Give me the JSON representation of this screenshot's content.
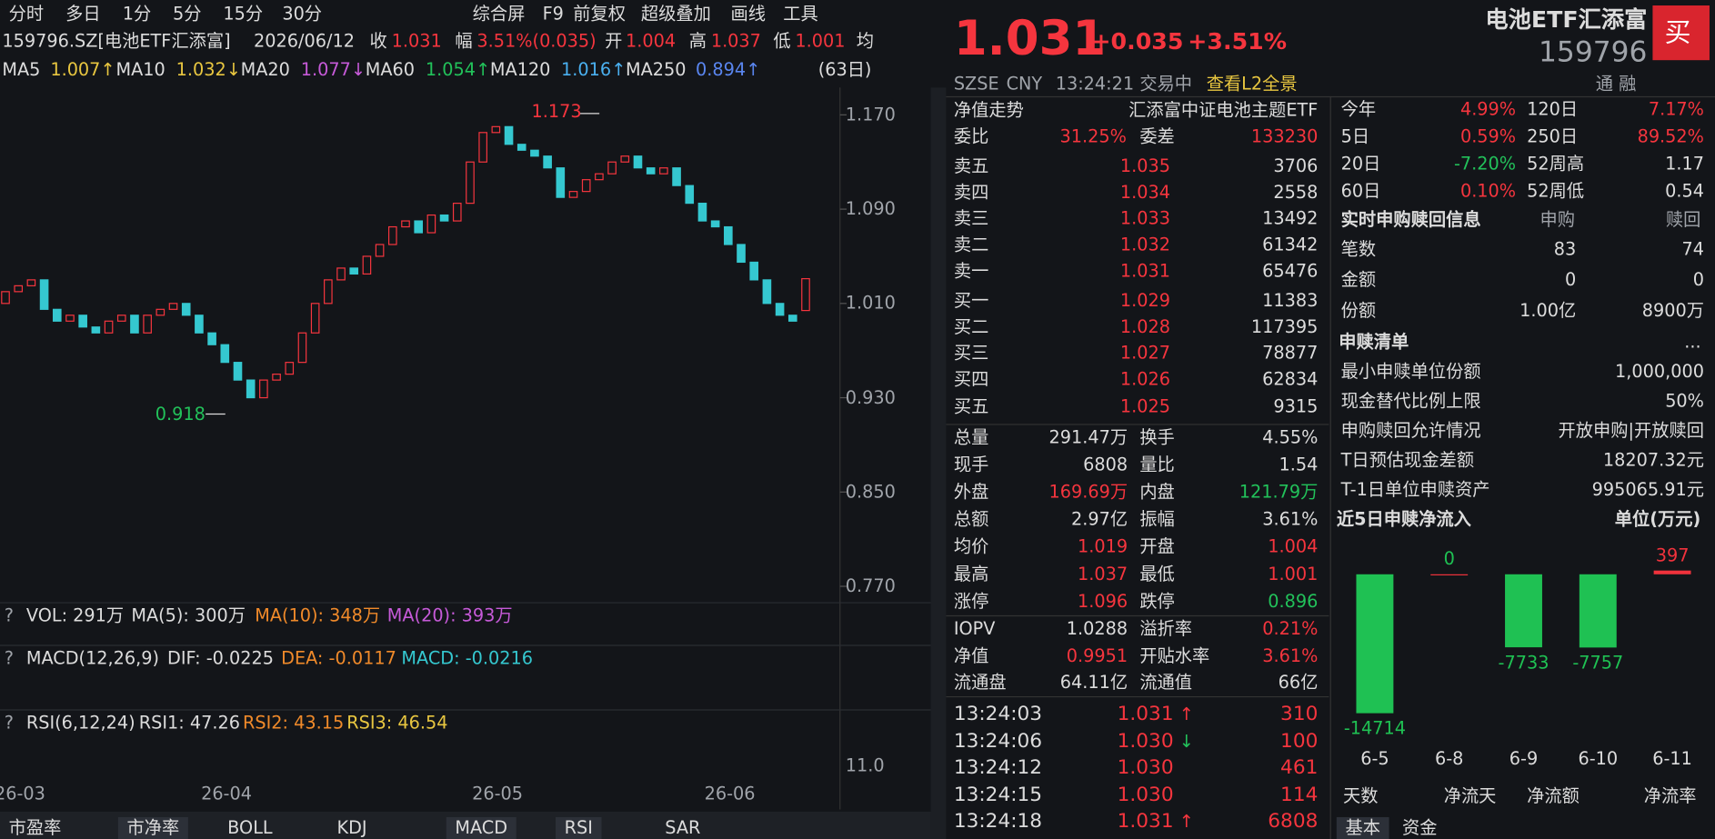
{
  "toolbar": {
    "periods": [
      "分时",
      "多日",
      "1分",
      "5分",
      "15分",
      "30分"
    ],
    "tools": [
      "综合屏",
      "F9",
      "前复权",
      "超级叠加",
      "画线",
      "工具"
    ]
  },
  "info": {
    "code": "159796.SZ[电池ETF汇添富]",
    "date": "2026/06/12",
    "close_label": "收",
    "close": "1.031",
    "change_label": "幅",
    "change": "3.51%(0.035)",
    "open_label": "开",
    "open": "1.004",
    "high_label": "高",
    "high": "1.037",
    "low_label": "低",
    "low": "1.001",
    "avg_label": "均"
  },
  "ma": [
    {
      "name": "MA5",
      "value": "1.007↑"
    },
    {
      "name": "MA10",
      "value": "1.032↓"
    },
    {
      "name": "MA20",
      "value": "1.077↓"
    },
    {
      "name": "MA60",
      "value": "1.054↑"
    },
    {
      "name": "MA120",
      "value": "1.016↑"
    },
    {
      "name": "MA250",
      "value": "0.894↑"
    }
  ],
  "period": "(63日)",
  "chart": {
    "type": "candlestick",
    "ylim": [
      0.77,
      1.17
    ],
    "yticks": [
      {
        "value": 1.17,
        "label": "1.170"
      },
      {
        "value": 1.09,
        "label": "1.090"
      },
      {
        "value": 1.01,
        "label": "1.010"
      },
      {
        "value": 0.93,
        "label": "0.930"
      },
      {
        "value": 0.85,
        "label": "0.850"
      },
      {
        "value": 0.77,
        "label": "0.770"
      }
    ],
    "categories": [
      "26-03",
      null,
      null,
      null,
      null,
      null,
      null,
      null,
      null,
      null,
      null,
      null,
      null,
      null,
      null,
      null,
      "26-04",
      null,
      null,
      null,
      null,
      null,
      null,
      null,
      null,
      null,
      null,
      null,
      null,
      null,
      null,
      null,
      null,
      null,
      null,
      null,
      null,
      "26-05",
      null,
      null,
      null,
      null,
      null,
      null,
      null,
      null,
      null,
      null,
      null,
      null,
      null,
      null,
      null,
      null,
      null,
      "26-06",
      null,
      null,
      null,
      null,
      null,
      null,
      null
    ],
    "open": [
      1.01,
      1.02,
      1.025,
      1.03,
      1.005,
      0.995,
      1.0,
      0.99,
      0.985,
      0.995,
      1.0,
      0.985,
      1.0,
      1.005,
      1.01,
      1.0,
      0.985,
      0.975,
      0.96,
      0.945,
      0.93,
      0.945,
      0.95,
      0.96,
      0.985,
      1.01,
      1.03,
      1.04,
      1.035,
      1.05,
      1.06,
      1.075,
      1.08,
      1.07,
      1.085,
      1.08,
      1.095,
      1.13,
      1.155,
      1.16,
      1.145,
      1.14,
      1.135,
      1.125,
      1.1,
      1.105,
      1.115,
      1.12,
      1.13,
      1.135,
      1.125,
      1.12,
      1.125,
      1.11,
      1.095,
      1.08,
      1.075,
      1.06,
      1.045,
      1.03,
      1.01,
      1.0,
      1.004
    ],
    "close": [
      1.02,
      1.025,
      1.03,
      1.005,
      0.995,
      1.0,
      0.99,
      0.985,
      0.995,
      1.0,
      0.985,
      1.0,
      1.005,
      1.01,
      1.0,
      0.985,
      0.975,
      0.96,
      0.945,
      0.93,
      0.945,
      0.95,
      0.96,
      0.985,
      1.01,
      1.03,
      1.04,
      1.035,
      1.05,
      1.06,
      1.075,
      1.08,
      1.07,
      1.085,
      1.08,
      1.095,
      1.13,
      1.155,
      1.16,
      1.145,
      1.14,
      1.135,
      1.125,
      1.1,
      1.105,
      1.115,
      1.12,
      1.13,
      1.135,
      1.125,
      1.12,
      1.125,
      1.11,
      1.095,
      1.08,
      1.075,
      1.06,
      1.045,
      1.03,
      1.01,
      1.0,
      0.995,
      1.031
    ],
    "high_mark": 1.173,
    "low_mark": 0.918
  },
  "vol": {
    "help": "?",
    "items": [
      "VOL: 291万",
      "MA(5): 300万",
      "MA(10): 348万",
      "MA(20): 393万"
    ]
  },
  "macd": {
    "items": [
      "MACD(12,26,9)",
      "DIF: -0.0225",
      "DEA: -0.0117",
      "MACD: -0.0216"
    ]
  },
  "rsi": {
    "items": [
      "RSI(6,12,24)",
      "RSI1: 47.26",
      "RSI2: 43.15",
      "RSI3: 46.54"
    ],
    "tick": "11.0"
  },
  "tabs": [
    "市盈率",
    "市净率",
    "BOLL",
    "KDJ",
    "MACD",
    "RSI",
    "SAR"
  ],
  "quote": {
    "price": "1.031",
    "change": "+0.035",
    "pct": "+3.51%",
    "name": "电池ETF汇添富",
    "code": "159796",
    "buy": "买",
    "status": [
      "SZSE",
      "CNY",
      "13:24:21",
      "交易中",
      "查看L2全景"
    ],
    "finance": "通 融",
    "nav_trend": "净值走势",
    "fund": "汇添富中证电池主题ETF",
    "ratio": [
      "委比",
      "31.25%",
      "委差",
      "133230"
    ],
    "sells": [
      [
        "卖五",
        "1.035",
        "3706"
      ],
      [
        "卖四",
        "1.034",
        "2558"
      ],
      [
        "卖三",
        "1.033",
        "13492"
      ],
      [
        "卖二",
        "1.032",
        "61342"
      ],
      [
        "卖一",
        "1.031",
        "65476"
      ]
    ],
    "buys": [
      [
        "买一",
        "1.029",
        "11383"
      ],
      [
        "买二",
        "1.028",
        "117395"
      ],
      [
        "买三",
        "1.027",
        "78877"
      ],
      [
        "买四",
        "1.026",
        "62834"
      ],
      [
        "买五",
        "1.025",
        "9315"
      ]
    ],
    "stats": [
      [
        "总量",
        "291.47万",
        "换手",
        "4.55%"
      ],
      [
        "现手",
        "6808",
        "量比",
        "1.54"
      ],
      [
        "外盘",
        "169.69万",
        "内盘",
        "121.79万"
      ],
      [
        "总额",
        "2.97亿",
        "振幅",
        "3.61%"
      ],
      [
        "均价",
        "1.019",
        "开盘",
        "1.004"
      ],
      [
        "最高",
        "1.037",
        "最低",
        "1.001"
      ],
      [
        "涨停",
        "1.096",
        "跌停",
        "0.896"
      ]
    ],
    "etf": [
      [
        "IOPV",
        "1.0288",
        "溢折率",
        "0.21%"
      ],
      [
        "净值",
        "0.9951",
        "开贴水率",
        "3.61%"
      ],
      [
        "流通盘",
        "64.11亿",
        "流通值",
        "66亿"
      ]
    ],
    "ticks": [
      [
        "13:24:03",
        "1.031",
        "↑",
        "310"
      ],
      [
        "13:24:06",
        "1.030",
        "↓",
        "100"
      ],
      [
        "13:24:12",
        "1.030",
        "",
        "461"
      ],
      [
        "13:24:15",
        "1.030",
        "",
        "114"
      ],
      [
        "13:24:18",
        "1.031",
        "↑",
        "6808"
      ]
    ]
  },
  "side": {
    "returns": [
      [
        "今年",
        "4.99%",
        "120日",
        "7.17%"
      ],
      [
        "5日",
        "0.59%",
        "250日",
        "89.52%"
      ],
      [
        "20日",
        "-7.20%",
        "52周高",
        "1.17"
      ],
      [
        "60日",
        "0.10%",
        "52周低",
        "0.54"
      ]
    ],
    "realtime": {
      "title": "实时申购赎回信息",
      "cols": [
        "申购",
        "赎回"
      ],
      "rows": [
        [
          "笔数",
          "83",
          "74"
        ],
        [
          "金额",
          "0",
          "0"
        ],
        [
          "份额",
          "1.00亿",
          "8900万"
        ]
      ]
    },
    "list": {
      "title": "申赎清单",
      "more": "...",
      "rows": [
        [
          "最小申赎单位份额",
          "1,000,000"
        ],
        [
          "现金替代比例上限",
          "50%"
        ],
        [
          "申购赎回允许情况",
          "开放申购|开放赎回"
        ],
        [
          "T日预估现金差额",
          "18207.32元"
        ],
        [
          "T-1日单位申赎资产",
          "995065.91元"
        ]
      ]
    },
    "flow": {
      "type": "bar",
      "title": "近5日申赎净流入",
      "unit": "单位(万元)",
      "categories": [
        "6-5",
        "6-8",
        "6-9",
        "6-10",
        "6-11"
      ],
      "values": [
        -14714,
        0,
        -7733,
        -7757,
        397
      ],
      "colors": {
        "negative": "#1fc153",
        "positive": "#f0323c"
      }
    },
    "footer": [
      "天数",
      "净流天",
      "净流额",
      "净流率"
    ],
    "tabs": [
      "基本",
      "资金"
    ]
  }
}
